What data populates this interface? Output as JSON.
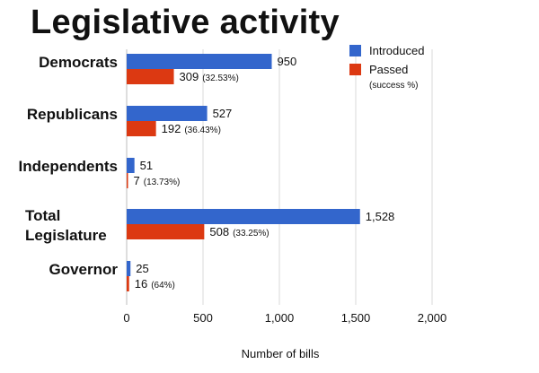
{
  "chart_data": {
    "type": "bar",
    "orientation": "horizontal",
    "title": "Legislative activity",
    "xlabel": "Number of bills",
    "ylabel": "",
    "xlim": [
      0,
      2000
    ],
    "xticks": [
      {
        "value": 0,
        "label": "0"
      },
      {
        "value": 500,
        "label": "500"
      },
      {
        "value": 1000,
        "label": "1,000"
      },
      {
        "value": 1500,
        "label": "1,500"
      },
      {
        "value": 2000,
        "label": "2,000"
      }
    ],
    "grid": true,
    "legend_position": "top-right",
    "categories": [
      {
        "lines": [
          "Democrats"
        ]
      },
      {
        "lines": [
          "Republicans"
        ]
      },
      {
        "lines": [
          "Independents"
        ]
      },
      {
        "lines": [
          "Total",
          "Legislature"
        ]
      },
      {
        "lines": [
          "Governor"
        ]
      }
    ],
    "series": [
      {
        "name": "Introduced",
        "color": "#3366cc",
        "values": [
          950,
          527,
          51,
          1528,
          25
        ],
        "labels": [
          "950",
          "527",
          "51",
          "1,528",
          "25"
        ],
        "sublabels": [
          "",
          "",
          "",
          "",
          ""
        ]
      },
      {
        "name": "Passed",
        "subname": "(success %)",
        "color": "#dc3912",
        "values": [
          309,
          192,
          7,
          508,
          16
        ],
        "labels": [
          "309",
          "192",
          "7",
          "508",
          "16"
        ],
        "sublabels": [
          "(32.53%)",
          "(36.43%)",
          "(13.73%)",
          "(33.25%)",
          "(64%)"
        ]
      }
    ],
    "grid_color": "#d9d9d9"
  }
}
